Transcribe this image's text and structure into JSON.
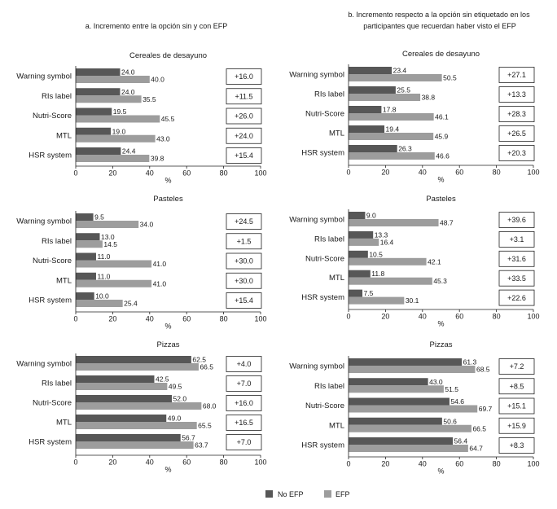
{
  "columns": [
    {
      "header_lines": [
        "a. Incremento entre la opción sin y con EFP"
      ]
    },
    {
      "header_lines": [
        "b. Incremento respecto a la opción sin etiquetado en los",
        "participantes que recuerdan haber visto el EFP"
      ]
    }
  ],
  "legend": [
    {
      "label": "No EFP",
      "color": "#575757"
    },
    {
      "label": "EFP",
      "color": "#9d9d9d"
    }
  ],
  "chart_data": [
    {
      "column_index": 0,
      "type": "bar",
      "orientation": "horizontal",
      "title": "Cereales de desayuno",
      "categories": [
        "Warning symbol",
        "RIs label",
        "Nutri-Score",
        "MTL",
        "HSR system"
      ],
      "series": [
        {
          "legend_index": 0,
          "values": [
            24.0,
            24.0,
            19.5,
            19.0,
            24.4
          ]
        },
        {
          "legend_index": 1,
          "values": [
            40.0,
            35.5,
            45.5,
            43.0,
            39.8
          ]
        }
      ],
      "increments": [
        "+16.0",
        "+11.5",
        "+26.0",
        "+24.0",
        "+15.4"
      ],
      "xlabel": "%",
      "xlim": [
        0,
        100
      ],
      "xticks": [
        0,
        20,
        40,
        60,
        80,
        100
      ]
    },
    {
      "column_index": 0,
      "type": "bar",
      "orientation": "horizontal",
      "title": "Pasteles",
      "categories": [
        "Warning symbol",
        "RIs label",
        "Nutri-Score",
        "MTL",
        "HSR system"
      ],
      "series": [
        {
          "legend_index": 0,
          "values": [
            9.5,
            13.0,
            11.0,
            11.0,
            10.0
          ]
        },
        {
          "legend_index": 1,
          "values": [
            34.0,
            14.5,
            41.0,
            41.0,
            25.4
          ]
        }
      ],
      "increments": [
        "+24.5",
        "+1.5",
        "+30.0",
        "+30.0",
        "+15.4"
      ],
      "xlabel": "%",
      "xlim": [
        0,
        100
      ],
      "xticks": [
        0,
        20,
        40,
        60,
        80,
        100
      ]
    },
    {
      "column_index": 0,
      "type": "bar",
      "orientation": "horizontal",
      "title": "Pizzas",
      "categories": [
        "Warning symbol",
        "RIs label",
        "Nutri-Score",
        "MTL",
        "HSR system"
      ],
      "series": [
        {
          "legend_index": 0,
          "values": [
            62.5,
            42.5,
            52.0,
            49.0,
            56.7
          ]
        },
        {
          "legend_index": 1,
          "values": [
            66.5,
            49.5,
            68.0,
            65.5,
            63.7
          ]
        }
      ],
      "increments": [
        "+4.0",
        "+7.0",
        "+16.0",
        "+16.5",
        "+7.0"
      ],
      "xlabel": "%",
      "xlim": [
        0,
        100
      ],
      "xticks": [
        0,
        20,
        40,
        60,
        80,
        100
      ]
    },
    {
      "column_index": 1,
      "type": "bar",
      "orientation": "horizontal",
      "title": "Cereales de desayuno",
      "categories": [
        "Warning symbol",
        "RIs label",
        "Nutri-Score",
        "MTL",
        "HSR system"
      ],
      "series": [
        {
          "legend_index": 0,
          "values": [
            23.4,
            25.5,
            17.8,
            19.4,
            26.3
          ]
        },
        {
          "legend_index": 1,
          "values": [
            50.5,
            38.8,
            46.1,
            45.9,
            46.6
          ]
        }
      ],
      "increments": [
        "+27.1",
        "+13.3",
        "+28.3",
        "+26.5",
        "+20.3"
      ],
      "xlabel": "%",
      "xlim": [
        0,
        100
      ],
      "xticks": [
        0,
        20,
        40,
        60,
        80,
        100
      ]
    },
    {
      "column_index": 1,
      "type": "bar",
      "orientation": "horizontal",
      "title": "Pasteles",
      "categories": [
        "Warning symbol",
        "RIs label",
        "Nutri-Score",
        "MTL",
        "HSR system"
      ],
      "series": [
        {
          "legend_index": 0,
          "values": [
            9.0,
            13.3,
            10.5,
            11.8,
            7.5
          ]
        },
        {
          "legend_index": 1,
          "values": [
            48.7,
            16.4,
            42.1,
            45.3,
            30.1
          ]
        }
      ],
      "increments": [
        "+39.6",
        "+3.1",
        "+31.6",
        "+33.5",
        "+22.6"
      ],
      "xlabel": "%",
      "xlim": [
        0,
        100
      ],
      "xticks": [
        0,
        20,
        40,
        60,
        80,
        100
      ]
    },
    {
      "column_index": 1,
      "type": "bar",
      "orientation": "horizontal",
      "title": "Pizzas",
      "categories": [
        "Warning symbol",
        "RIs label",
        "Nutri-Score",
        "MTL",
        "HSR system"
      ],
      "series": [
        {
          "legend_index": 0,
          "values": [
            61.3,
            43.0,
            54.6,
            50.6,
            56.4
          ]
        },
        {
          "legend_index": 1,
          "values": [
            68.5,
            51.5,
            69.7,
            66.5,
            64.7
          ]
        }
      ],
      "increments": [
        "+7.2",
        "+8.5",
        "+15.1",
        "+15.9",
        "+8.3"
      ],
      "xlabel": "%",
      "xlim": [
        0,
        100
      ],
      "xticks": [
        0,
        20,
        40,
        60,
        80,
        100
      ]
    }
  ]
}
